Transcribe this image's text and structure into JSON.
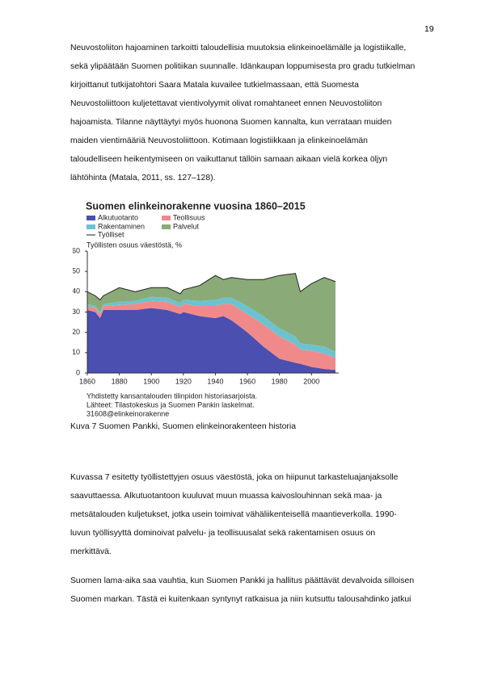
{
  "page_number": "19",
  "paragraphs": [
    [
      "Neuvostoliiton hajoaminen tarkoitti taloudellisia muutoksia elinkeinoelämälle ja logistiikalle,",
      "sekä ylipäätään Suomen politiikan suunnalle. Idänkaupan loppumisesta pro gradu tutkielman",
      "kirjoittanut tutkijatohtori Saara Matala kuvailee tutkielmassaan, että Suomesta",
      "Neuvostoliittoon kuljetettavat vientivolyymit olivat romahtaneet ennen Neuvostoliiton",
      "hajoamista. Tilanne näyttäytyi myös huonona Suomen kannalta, kun verrataan muiden",
      "maiden vientimääriä Neuvostoliittoon. Kotimaan logistiikkaan ja elinkeinoelämän",
      "taloudelliseen heikentymiseen on vaikuttanut tällöin samaan aikaan vielä korkea öljyn",
      "lähtöhinta (Matala, 2011, ss. 127–128)."
    ],
    [
      "Kuvassa 7 esitetty työllistettyjen osuus väestöstä, joka on hiipunut tarkasteluajanjaksolle",
      "saavuttaessa. Alkutuotantoon kuuluvat muun muassa kaivoslouhinnan sekä maa- ja",
      "metsätalouden kuljetukset, jotka usein toimivat vähäliikenteisellä maantieverkolla. 1990-",
      "luvun työllisyyttä dominoivat palvelu- ja teollisuusalat sekä rakentamisen osuus on",
      "merkittävä."
    ],
    [
      "Suomen lama-aika saa vauhtia, kun Suomen Pankki ja hallitus päättävät devalvoida silloisen",
      "Suomen markan. Tästä ei kuitenkaan syntynyt ratkaisua ja niin kutsuttu talousahdinko jatkui"
    ]
  ],
  "caption": "Kuva 7 Suomen Pankki, Suomen elinkeinorakenteen historia",
  "chart_data": {
    "type": "stacked_area",
    "title": "Suomen elinkeinorakenne vuosina 1860–2015",
    "ylabel": "Työllisten osuus väestöstä, %",
    "notes": [
      "Yhdistetty kansantalouden tilinpidon historiasarjoista.",
      "Lähteet: Tilastokeskus ja Suomen Pankin laskelmat.",
      "31608@elinkeinorakenne"
    ],
    "x": [
      1860,
      1865,
      1868,
      1870,
      1880,
      1890,
      1900,
      1910,
      1918,
      1920,
      1930,
      1940,
      1945,
      1950,
      1960,
      1970,
      1980,
      1990,
      1993,
      2000,
      2008,
      2015
    ],
    "xlim": [
      1860,
      2015
    ],
    "xticks": [
      1860,
      1880,
      1900,
      1920,
      1940,
      1960,
      1980,
      2000
    ],
    "ylim": [
      0,
      60
    ],
    "yticks": [
      0,
      10,
      20,
      30,
      40,
      50,
      60
    ],
    "series": [
      {
        "name": "Alkutuotanto",
        "type": "area",
        "color": "#4a4fb0",
        "values": [
          31,
          30,
          27,
          31,
          31,
          31,
          32,
          31,
          29,
          30,
          28,
          27,
          28,
          26,
          20,
          13,
          7,
          5,
          4.5,
          3,
          2,
          1.5
        ]
      },
      {
        "name": "Teollisuus",
        "type": "area",
        "color": "#f08a8a",
        "values": [
          2,
          2,
          2,
          2,
          2.5,
          3,
          3.5,
          4,
          3.5,
          4,
          5,
          6,
          6,
          8,
          9,
          11,
          11,
          9,
          7,
          8,
          7.5,
          6
        ]
      },
      {
        "name": "Rakentaminen",
        "type": "area",
        "color": "#6cc3d0",
        "values": [
          1,
          1,
          1,
          1,
          1.5,
          1.5,
          2,
          2,
          2,
          2,
          2.5,
          3,
          3,
          3,
          4,
          4,
          4,
          4,
          3,
          3,
          3.5,
          3
        ]
      },
      {
        "name": "Palvelut",
        "type": "area",
        "color": "#8aab78",
        "values": [
          6,
          5,
          6,
          4,
          7,
          4.5,
          4.5,
          5,
          4.5,
          5,
          7.5,
          12,
          9,
          10,
          13,
          18,
          26,
          31,
          25.5,
          30,
          34,
          34.5
        ]
      },
      {
        "name": "Työlliset",
        "type": "line",
        "color": "#222222",
        "values": [
          40,
          38,
          36,
          38,
          42,
          40,
          42,
          42,
          39,
          41,
          43,
          48,
          46,
          47,
          46,
          46,
          48,
          49,
          40,
          44,
          47,
          45
        ]
      }
    ]
  }
}
